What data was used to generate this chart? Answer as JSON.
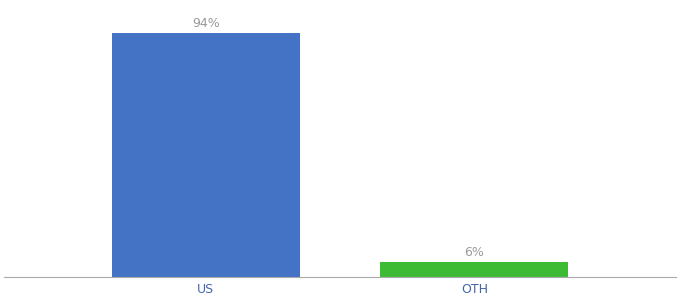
{
  "categories": [
    "US",
    "OTH"
  ],
  "values": [
    94,
    6
  ],
  "bar_colors": [
    "#4472c4",
    "#3dbb35"
  ],
  "label_texts": [
    "94%",
    "6%"
  ],
  "background_color": "#ffffff",
  "text_color": "#999999",
  "label_fontsize": 9,
  "tick_fontsize": 9,
  "ylim": [
    0,
    105
  ],
  "bar_width": 0.28,
  "x_positions": [
    0.3,
    0.7
  ],
  "xlim": [
    0.0,
    1.0
  ]
}
